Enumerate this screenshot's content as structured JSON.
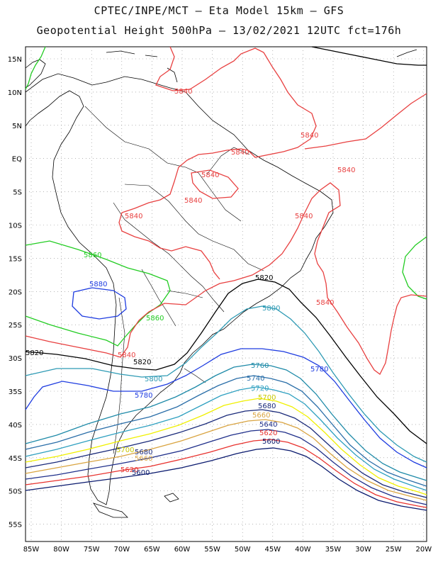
{
  "header": {
    "title_line1": "CPTEC/INPE/MCT –  Eta Model 15km – GFS",
    "title_line2": "Geopotential Height 500hPa – 13/02/2021 12UTC fct=176h"
  },
  "axes": {
    "lat_labels": [
      "15N",
      "10N",
      "5N",
      "EQ",
      "5S",
      "10S",
      "15S",
      "20S",
      "25S",
      "30S",
      "35S",
      "40S",
      "45S",
      "50S",
      "55S"
    ],
    "lon_labels": [
      "85W",
      "80W",
      "75W",
      "70W",
      "65W",
      "60W",
      "55W",
      "50W",
      "45W",
      "40W",
      "35W",
      "30W",
      "25W",
      "20W"
    ],
    "grid": "dotted"
  },
  "contour_levels": [
    {
      "level": "5600",
      "color": "#0a1a6e"
    },
    {
      "level": "5620",
      "color": "#e8322e"
    },
    {
      "level": "5640",
      "color": "#1f2f8a"
    },
    {
      "level": "5660",
      "color": "#d9a441"
    },
    {
      "level": "5680",
      "color": "#1a2a7a"
    },
    {
      "level": "5700",
      "color": "#f0f000"
    },
    {
      "level": "5720",
      "color": "#2fa0c0"
    },
    {
      "level": "5740",
      "color": "#2a6ea8"
    },
    {
      "level": "5760",
      "color": "#1e8aa8"
    },
    {
      "level": "5780",
      "color": "#1e3ce0"
    },
    {
      "level": "5800",
      "color": "#2e9ab4"
    },
    {
      "level": "5820",
      "color": "#000000"
    },
    {
      "level": "5840",
      "color": "#e84040"
    },
    {
      "level": "5860",
      "color": "#22cc22"
    },
    {
      "level": "5880",
      "color": "#1e3ce0"
    }
  ],
  "labels": {
    "l5840": "5840",
    "l5860": "5860",
    "l5880": "5880",
    "l5820": "5820",
    "l5800": "5800",
    "l5780": "5780",
    "l5760": "5760",
    "l5740": "5740",
    "l5720": "5720",
    "l5700": "5700",
    "l5680": "5680",
    "l5660": "5660",
    "l5640": "5640",
    "l5620": "5620",
    "l5600": "5600"
  }
}
